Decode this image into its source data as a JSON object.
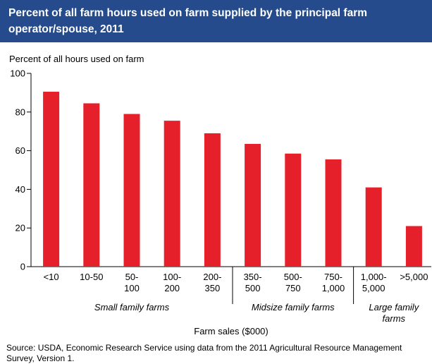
{
  "title": "Percent of all farm hours used on farm supplied by the principal farm operator/spouse, 2011",
  "source": "Source: USDA, Economic Research Service using data from the 2011 Agricultural Resource Management Survey, Version 1.",
  "colors": {
    "title_background": "#254b8c",
    "bar": "#e5202a",
    "text": "#000000",
    "axis": "#000000"
  },
  "chart_data": {
    "type": "bar",
    "categories": [
      "<10",
      "10-50",
      "50-100",
      "100-200",
      "200-350",
      "350-500",
      "500-750",
      "750-1,000",
      "1,000-5,000",
      ">5,000"
    ],
    "category_label_lines": [
      [
        "<10"
      ],
      [
        "10-50"
      ],
      [
        "50-",
        "100"
      ],
      [
        "100-",
        "200"
      ],
      [
        "200-",
        "350"
      ],
      [
        "350-",
        "500"
      ],
      [
        "500-",
        "750"
      ],
      [
        "750-",
        "1,000"
      ],
      [
        "1,000-",
        "5,000"
      ],
      [
        ">5,000"
      ]
    ],
    "values": [
      90.5,
      84.5,
      79,
      75.5,
      69,
      63.5,
      58.5,
      55.5,
      41,
      21
    ],
    "title": "Percent of all farm hours used on farm supplied by the principal farm operator/spouse, 2011",
    "ylabel": "Percent of all hours used on farm",
    "xlabel": "Farm sales ($000)",
    "ylim": [
      0,
      100
    ],
    "yticks": [
      0,
      20,
      40,
      60,
      80,
      100
    ],
    "groups": [
      {
        "label_lines": [
          "Small family farms"
        ],
        "first": 0,
        "last": 4
      },
      {
        "label_lines": [
          "Midsize family farms"
        ],
        "first": 5,
        "last": 7
      },
      {
        "label_lines": [
          "Large family",
          "farms"
        ],
        "first": 8,
        "last": 9
      }
    ],
    "grid": false,
    "legend": "none"
  }
}
